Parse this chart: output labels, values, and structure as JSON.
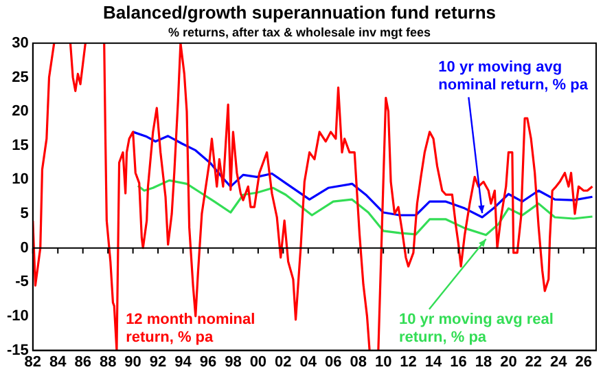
{
  "chart_data": {
    "type": "line",
    "title": "Balanced/growth superannuation fund returns",
    "subtitle": "% returns, after tax & wholesale inv mgt fees",
    "xlim": [
      1982,
      2027
    ],
    "xticks": [
      {
        "value": 1982,
        "label": "82"
      },
      {
        "value": 1984,
        "label": "84"
      },
      {
        "value": 1986,
        "label": "86"
      },
      {
        "value": 1988,
        "label": "88"
      },
      {
        "value": 1990,
        "label": "90"
      },
      {
        "value": 1992,
        "label": "92"
      },
      {
        "value": 1994,
        "label": "94"
      },
      {
        "value": 1996,
        "label": "96"
      },
      {
        "value": 1998,
        "label": "98"
      },
      {
        "value": 2000,
        "label": "00"
      },
      {
        "value": 2002,
        "label": "02"
      },
      {
        "value": 2004,
        "label": "04"
      },
      {
        "value": 2006,
        "label": "06"
      },
      {
        "value": 2008,
        "label": "08"
      },
      {
        "value": 2010,
        "label": "10"
      },
      {
        "value": 2012,
        "label": "12"
      },
      {
        "value": 2014,
        "label": "14"
      },
      {
        "value": 2016,
        "label": "16"
      },
      {
        "value": 2018,
        "label": "18"
      },
      {
        "value": 2020,
        "label": "20"
      },
      {
        "value": 2022,
        "label": "22"
      },
      {
        "value": 2024,
        "label": "24"
      },
      {
        "value": 2026,
        "label": "26"
      }
    ],
    "ylim": [
      -15,
      30
    ],
    "yticks": [
      -15,
      -10,
      -5,
      0,
      5,
      10,
      15,
      20,
      25,
      30
    ],
    "grid": false,
    "ref_lines": [
      {
        "axis": "y",
        "value": 0
      }
    ],
    "legend": false,
    "marker": "none",
    "line_style": "solid",
    "series": [
      {
        "name": "12 month nominal return, % pa",
        "color": "#ff0000",
        "x": [
          1982.0,
          1982.2,
          1982.6,
          1982.75,
          1983.1,
          1983.3,
          1983.7,
          1984.3,
          1985.0,
          1985.2,
          1985.4,
          1985.6,
          1985.8,
          1986.0,
          1986.2,
          1987.0,
          1987.7,
          1987.8,
          1987.9,
          1988.2,
          1988.4,
          1988.5,
          1988.7,
          1988.9,
          1989.2,
          1989.4,
          1989.5,
          1989.7,
          1990.0,
          1990.2,
          1990.5,
          1990.7,
          1990.8,
          1991.1,
          1991.2,
          1991.6,
          1991.9,
          1992.2,
          1992.6,
          1992.8,
          1993.1,
          1993.3,
          1993.6,
          1993.8,
          1994.1,
          1994.3,
          1994.5,
          1994.8,
          1995.0,
          1995.2,
          1995.5,
          1995.7,
          1996.1,
          1996.3,
          1996.7,
          1996.9,
          1997.2,
          1997.6,
          1997.8,
          1998.0,
          1998.3,
          1998.6,
          1998.8,
          1999.0,
          1999.2,
          1999.4,
          1999.7,
          2000.1,
          2000.7,
          2001.1,
          2001.5,
          2001.8,
          2002.1,
          2002.4,
          2002.8,
          2003.0,
          2003.4,
          2003.7,
          2004.1,
          2004.5,
          2004.9,
          2005.4,
          2005.8,
          2006.2,
          2006.4,
          2006.7,
          2006.9,
          2007.3,
          2007.7,
          2008.1,
          2008.4,
          2008.7,
          2008.9,
          2009.2,
          2009.6,
          2010.0,
          2010.2,
          2010.4,
          2010.6,
          2010.9,
          2011.2,
          2011.5,
          2011.8,
          2012.0,
          2012.4,
          2012.7,
          2013.0,
          2013.3,
          2013.7,
          2014.0,
          2014.3,
          2014.7,
          2015.0,
          2015.5,
          2015.8,
          2016.0,
          2016.2,
          2016.5,
          2016.9,
          2017.3,
          2017.6,
          2018.0,
          2018.4,
          2018.6,
          2018.9,
          2019.1,
          2019.4,
          2019.8,
          2020.0,
          2020.3,
          2020.4,
          2020.7,
          2021.0,
          2021.3,
          2021.5,
          2021.8,
          2022.1,
          2022.4,
          2022.7,
          2022.9,
          2023.2,
          2023.3,
          2023.5,
          2023.8,
          2024.1,
          2024.5,
          2024.8,
          2025.0,
          2025.3,
          2025.6,
          2026.0,
          2026.3,
          2026.7
        ],
        "values": [
          4,
          -5.5,
          0,
          11.5,
          16,
          25,
          30,
          null,
          30,
          25,
          23,
          25.5,
          24,
          27,
          30,
          null,
          30,
          16,
          4,
          -2,
          -8,
          -8.5,
          -15,
          12.5,
          14,
          8,
          14,
          16,
          17,
          11,
          9.5,
          1.5,
          0,
          4,
          9,
          17,
          20.5,
          14,
          7.5,
          0.5,
          5,
          11,
          21.5,
          30,
          25.5,
          20,
          3,
          -5.5,
          -10,
          -3.5,
          5,
          7.5,
          12.5,
          16,
          9,
          13,
          9,
          21,
          8.5,
          17,
          11,
          8,
          7,
          8,
          9,
          6,
          6,
          11,
          14,
          8,
          4.5,
          -1.4,
          4,
          -2,
          -4.6,
          -10.5,
          0,
          9.7,
          14,
          13,
          17,
          15.6,
          17,
          16,
          23.5,
          14,
          16,
          14,
          14,
          2,
          -5.3,
          -10,
          -15,
          null,
          -15,
          9.7,
          22,
          20,
          9.7,
          5,
          6,
          2.5,
          -1.4,
          -2.7,
          -0.7,
          6.5,
          10.4,
          14,
          17,
          16,
          12,
          8.4,
          7.8,
          7.8,
          3.2,
          0.6,
          -2.7,
          1.9,
          6.5,
          10.4,
          9,
          9.7,
          8.4,
          6.5,
          8.4,
          0,
          4.5,
          9,
          14,
          14,
          -0.7,
          -0.7,
          4.5,
          19,
          19,
          16,
          11,
          3.2,
          -3.3,
          -6.3,
          -4.6,
          1.3,
          8.4,
          9,
          9.7,
          11,
          9,
          11,
          5,
          9,
          8.4,
          8.4,
          9
        ]
      },
      {
        "name": "10 yr moving avg nominal return, % pa",
        "color": "#0000ff",
        "x": [
          1990.0,
          1991.1,
          1991.8,
          1992.8,
          1993.9,
          1995.0,
          1996.2,
          1997.1,
          1997.8,
          1998.8,
          1999.9,
          2001.1,
          2002.2,
          2004.1,
          2005.6,
          2007.5,
          2008.6,
          2010.0,
          2011.3,
          2012.6,
          2013.7,
          2015.0,
          2016.5,
          2017.9,
          2018.8,
          2020.0,
          2021.1,
          2022.4,
          2023.7,
          2025.2,
          2026.7
        ],
        "values": [
          17,
          16.3,
          15.6,
          16.4,
          15.3,
          14.3,
          12.4,
          10.4,
          9,
          10.7,
          10.4,
          10.9,
          9.5,
          7.1,
          8.8,
          9.4,
          7.8,
          5.2,
          4.8,
          4.8,
          6.8,
          6.8,
          5.8,
          4.5,
          5.8,
          7.9,
          6.8,
          8.4,
          7.1,
          7,
          7.5
        ]
      },
      {
        "name": "10 yr moving avg real return, % pa",
        "color": "#33dd55",
        "x": [
          1990.4,
          1990.9,
          1991.6,
          1992.9,
          1994.3,
          1995.4,
          1996.5,
          1997.8,
          1998.8,
          1999.9,
          2001.2,
          2002.2,
          2004.3,
          2006.0,
          2007.5,
          2008.8,
          2010.0,
          2011.3,
          2012.6,
          2013.7,
          2015.0,
          2016.5,
          2018.2,
          2019.2,
          2020.0,
          2021.1,
          2022.4,
          2023.7,
          2025.2,
          2026.7
        ],
        "values": [
          9.1,
          8.4,
          8.8,
          9.9,
          9.4,
          8.1,
          6.8,
          5.2,
          7.8,
          8.1,
          8.8,
          7.8,
          4.8,
          6.8,
          7.1,
          5.2,
          2.5,
          2.2,
          2,
          4.2,
          4.2,
          2.9,
          1.9,
          3.5,
          5.8,
          4.8,
          6.5,
          4.5,
          4.3,
          4.6
        ]
      }
    ]
  }
}
